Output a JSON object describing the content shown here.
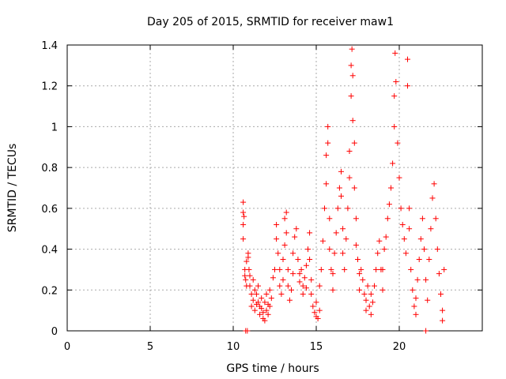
{
  "chart_data": {
    "type": "scatter",
    "title": "Day 205 of 2015, SRMTID for receiver maw1",
    "xlabel": "GPS time / hours",
    "ylabel": "SRMTID / TECUs",
    "xlim": [
      0,
      25
    ],
    "ylim": [
      0,
      1.4
    ],
    "xticks": [
      0,
      5,
      10,
      15,
      20
    ],
    "xtick_labels": [
      "0",
      "5",
      "10",
      "15",
      "20"
    ],
    "yticks": [
      0,
      0.2,
      0.4,
      0.6,
      0.8,
      1,
      1.2,
      1.4
    ],
    "ytick_labels": [
      "0",
      "0.2",
      "0.4",
      "0.6",
      "0.8",
      "1",
      "1.2",
      "1.4"
    ],
    "grid": true,
    "marker": "+",
    "color": "#ff0000",
    "series": [
      {
        "name": "maw1",
        "points": [
          [
            10.6,
            0.63
          ],
          [
            10.6,
            0.58
          ],
          [
            10.6,
            0.52
          ],
          [
            10.65,
            0.56
          ],
          [
            10.6,
            0.45
          ],
          [
            10.7,
            0.3
          ],
          [
            10.7,
            0.27
          ],
          [
            10.75,
            0.25
          ],
          [
            10.8,
            0.22
          ],
          [
            10.8,
            0.34
          ],
          [
            10.9,
            0.36
          ],
          [
            10.9,
            0.38
          ],
          [
            10.95,
            0.3
          ],
          [
            11.0,
            0.27
          ],
          [
            11.0,
            0.22
          ],
          [
            11.1,
            0.18
          ],
          [
            11.1,
            0.12
          ],
          [
            11.2,
            0.15
          ],
          [
            11.2,
            0.25
          ],
          [
            11.3,
            0.2
          ],
          [
            11.3,
            0.1
          ],
          [
            11.4,
            0.13
          ],
          [
            11.4,
            0.18
          ],
          [
            11.5,
            0.22
          ],
          [
            11.5,
            0.14
          ],
          [
            11.6,
            0.08
          ],
          [
            11.6,
            0.12
          ],
          [
            11.7,
            0.16
          ],
          [
            11.7,
            0.11
          ],
          [
            11.8,
            0.06
          ],
          [
            11.8,
            0.09
          ],
          [
            11.9,
            0.05
          ],
          [
            11.9,
            0.14
          ],
          [
            12.0,
            0.1
          ],
          [
            12.0,
            0.18
          ],
          [
            12.1,
            0.08
          ],
          [
            12.1,
            0.13
          ],
          [
            12.2,
            0.12
          ],
          [
            12.2,
            0.2
          ],
          [
            12.3,
            0.16
          ],
          [
            12.4,
            0.26
          ],
          [
            12.5,
            0.3
          ],
          [
            12.6,
            0.45
          ],
          [
            12.6,
            0.52
          ],
          [
            12.7,
            0.38
          ],
          [
            12.8,
            0.3
          ],
          [
            12.8,
            0.22
          ],
          [
            12.9,
            0.18
          ],
          [
            13.0,
            0.25
          ],
          [
            13.0,
            0.35
          ],
          [
            13.1,
            0.42
          ],
          [
            13.1,
            0.55
          ],
          [
            13.2,
            0.58
          ],
          [
            13.2,
            0.48
          ],
          [
            13.3,
            0.3
          ],
          [
            13.3,
            0.22
          ],
          [
            13.4,
            0.15
          ],
          [
            13.5,
            0.2
          ],
          [
            13.6,
            0.28
          ],
          [
            13.6,
            0.38
          ],
          [
            13.7,
            0.46
          ],
          [
            13.8,
            0.5
          ],
          [
            13.9,
            0.35
          ],
          [
            14.0,
            0.28
          ],
          [
            14.0,
            0.24
          ],
          [
            14.1,
            0.3
          ],
          [
            14.2,
            0.22
          ],
          [
            14.2,
            0.18
          ],
          [
            14.3,
            0.26
          ],
          [
            14.4,
            0.21
          ],
          [
            14.4,
            0.32
          ],
          [
            14.5,
            0.4
          ],
          [
            14.6,
            0.48
          ],
          [
            14.6,
            0.35
          ],
          [
            14.7,
            0.25
          ],
          [
            14.7,
            0.18
          ],
          [
            14.8,
            0.12
          ],
          [
            14.9,
            0.09
          ],
          [
            15.0,
            0.07
          ],
          [
            15.0,
            0.14
          ],
          [
            15.1,
            0.06
          ],
          [
            15.2,
            0.1
          ],
          [
            15.2,
            0.22
          ],
          [
            15.3,
            0.3
          ],
          [
            15.4,
            0.44
          ],
          [
            15.5,
            0.6
          ],
          [
            15.6,
            0.72
          ],
          [
            15.6,
            0.86
          ],
          [
            15.7,
            1.0
          ],
          [
            15.7,
            0.92
          ],
          [
            15.8,
            0.55
          ],
          [
            15.8,
            0.4
          ],
          [
            15.9,
            0.3
          ],
          [
            16.0,
            0.2
          ],
          [
            16.0,
            0.28
          ],
          [
            16.1,
            0.38
          ],
          [
            16.2,
            0.48
          ],
          [
            16.3,
            0.6
          ],
          [
            16.4,
            0.7
          ],
          [
            16.5,
            0.78
          ],
          [
            16.5,
            0.66
          ],
          [
            16.6,
            0.5
          ],
          [
            16.6,
            0.38
          ],
          [
            16.7,
            0.3
          ],
          [
            16.8,
            0.45
          ],
          [
            16.9,
            0.6
          ],
          [
            17.0,
            0.75
          ],
          [
            17.0,
            0.88
          ],
          [
            17.1,
            1.15
          ],
          [
            17.1,
            1.3
          ],
          [
            17.15,
            1.38
          ],
          [
            17.2,
            1.25
          ],
          [
            17.2,
            1.03
          ],
          [
            17.3,
            0.92
          ],
          [
            17.3,
            0.7
          ],
          [
            17.4,
            0.55
          ],
          [
            17.4,
            0.42
          ],
          [
            17.5,
            0.35
          ],
          [
            17.6,
            0.28
          ],
          [
            17.6,
            0.2
          ],
          [
            17.7,
            0.3
          ],
          [
            17.8,
            0.25
          ],
          [
            17.9,
            0.18
          ],
          [
            18.0,
            0.15
          ],
          [
            18.0,
            0.1
          ],
          [
            18.1,
            0.22
          ],
          [
            18.2,
            0.12
          ],
          [
            18.3,
            0.08
          ],
          [
            18.3,
            0.18
          ],
          [
            18.4,
            0.14
          ],
          [
            18.5,
            0.22
          ],
          [
            18.6,
            0.3
          ],
          [
            18.7,
            0.38
          ],
          [
            18.8,
            0.44
          ],
          [
            18.9,
            0.3
          ],
          [
            19.0,
            0.2
          ],
          [
            19.0,
            0.3
          ],
          [
            19.1,
            0.4
          ],
          [
            19.2,
            0.46
          ],
          [
            19.3,
            0.55
          ],
          [
            19.4,
            0.62
          ],
          [
            19.5,
            0.7
          ],
          [
            19.6,
            0.82
          ],
          [
            19.7,
            1.0
          ],
          [
            19.7,
            1.15
          ],
          [
            19.75,
            1.36
          ],
          [
            19.8,
            1.22
          ],
          [
            19.9,
            0.92
          ],
          [
            20.0,
            0.75
          ],
          [
            20.1,
            0.6
          ],
          [
            20.2,
            0.52
          ],
          [
            20.3,
            0.45
          ],
          [
            20.4,
            0.38
          ],
          [
            20.5,
            1.33
          ],
          [
            20.5,
            1.2
          ],
          [
            20.6,
            0.6
          ],
          [
            20.6,
            0.5
          ],
          [
            20.7,
            0.3
          ],
          [
            20.8,
            0.2
          ],
          [
            20.9,
            0.12
          ],
          [
            21.0,
            0.08
          ],
          [
            21.0,
            0.16
          ],
          [
            21.1,
            0.25
          ],
          [
            21.2,
            0.35
          ],
          [
            21.3,
            0.45
          ],
          [
            21.4,
            0.55
          ],
          [
            21.5,
            0.4
          ],
          [
            21.6,
            0.25
          ],
          [
            21.7,
            0.15
          ],
          [
            21.8,
            0.35
          ],
          [
            21.9,
            0.5
          ],
          [
            22.0,
            0.65
          ],
          [
            22.1,
            0.72
          ],
          [
            22.2,
            0.55
          ],
          [
            22.3,
            0.4
          ],
          [
            22.4,
            0.28
          ],
          [
            22.5,
            0.18
          ],
          [
            22.6,
            0.1
          ],
          [
            22.6,
            0.05
          ],
          [
            22.7,
            0.3
          ],
          [
            10.75,
            0.0
          ],
          [
            10.85,
            0.0
          ],
          [
            21.6,
            0.0
          ]
        ]
      }
    ]
  }
}
